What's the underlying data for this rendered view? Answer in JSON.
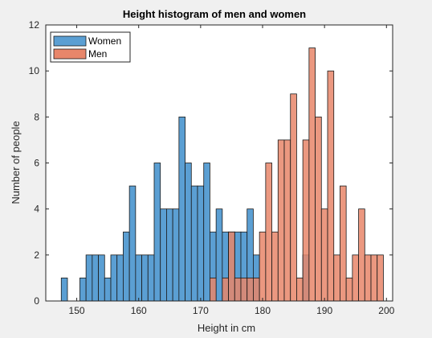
{
  "chart_data": {
    "type": "bar",
    "title": "Height histogram of men and women",
    "xlabel": "Height in cm",
    "ylabel": "Number of people",
    "xlim": [
      145,
      201
    ],
    "ylim": [
      0,
      12
    ],
    "xticks": [
      150,
      160,
      170,
      180,
      190,
      200
    ],
    "yticks": [
      0,
      2,
      4,
      6,
      8,
      10,
      12
    ],
    "bin_width": 1,
    "grid": false,
    "legend_position": "top-left",
    "series": [
      {
        "name": "Women",
        "color": "#5b9fd3",
        "bins": [
          {
            "x": 148,
            "count": 1
          },
          {
            "x": 151,
            "count": 1
          },
          {
            "x": 152,
            "count": 2
          },
          {
            "x": 153,
            "count": 2
          },
          {
            "x": 154,
            "count": 2
          },
          {
            "x": 155,
            "count": 1
          },
          {
            "x": 156,
            "count": 2
          },
          {
            "x": 157,
            "count": 2
          },
          {
            "x": 158,
            "count": 3
          },
          {
            "x": 159,
            "count": 5
          },
          {
            "x": 160,
            "count": 2
          },
          {
            "x": 161,
            "count": 2
          },
          {
            "x": 162,
            "count": 2
          },
          {
            "x": 163,
            "count": 6
          },
          {
            "x": 164,
            "count": 4
          },
          {
            "x": 165,
            "count": 4
          },
          {
            "x": 166,
            "count": 4
          },
          {
            "x": 167,
            "count": 8
          },
          {
            "x": 168,
            "count": 6
          },
          {
            "x": 169,
            "count": 5
          },
          {
            "x": 170,
            "count": 5
          },
          {
            "x": 171,
            "count": 6
          },
          {
            "x": 172,
            "count": 3
          },
          {
            "x": 173,
            "count": 4
          },
          {
            "x": 174,
            "count": 3
          },
          {
            "x": 175,
            "count": 3
          },
          {
            "x": 176,
            "count": 3
          },
          {
            "x": 177,
            "count": 3
          },
          {
            "x": 178,
            "count": 4
          },
          {
            "x": 179,
            "count": 2
          },
          {
            "x": 187,
            "count": 2
          }
        ]
      },
      {
        "name": "Men",
        "color": "#e8866a",
        "bins": [
          {
            "x": 172,
            "count": 1
          },
          {
            "x": 174,
            "count": 1
          },
          {
            "x": 175,
            "count": 3
          },
          {
            "x": 176,
            "count": 1
          },
          {
            "x": 177,
            "count": 1
          },
          {
            "x": 178,
            "count": 1
          },
          {
            "x": 179,
            "count": 1
          },
          {
            "x": 180,
            "count": 3
          },
          {
            "x": 181,
            "count": 6
          },
          {
            "x": 182,
            "count": 3
          },
          {
            "x": 183,
            "count": 7
          },
          {
            "x": 184,
            "count": 7
          },
          {
            "x": 185,
            "count": 9
          },
          {
            "x": 186,
            "count": 1
          },
          {
            "x": 187,
            "count": 7
          },
          {
            "x": 188,
            "count": 11
          },
          {
            "x": 189,
            "count": 8
          },
          {
            "x": 190,
            "count": 4
          },
          {
            "x": 191,
            "count": 10
          },
          {
            "x": 192,
            "count": 2
          },
          {
            "x": 193,
            "count": 5
          },
          {
            "x": 194,
            "count": 1
          },
          {
            "x": 195,
            "count": 2
          },
          {
            "x": 196,
            "count": 4
          },
          {
            "x": 197,
            "count": 2
          },
          {
            "x": 198,
            "count": 2
          },
          {
            "x": 199,
            "count": 2
          }
        ]
      }
    ]
  }
}
